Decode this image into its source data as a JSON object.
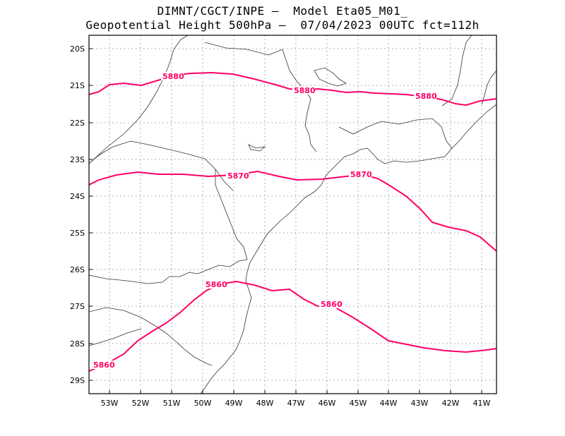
{
  "title": {
    "line1": "DIMNT/CGCT/INPE –  Model Eta05_M01_",
    "line2": "Geopotential Height 500hPa –  07/04/2023 00UTC fct=112h"
  },
  "map": {
    "lat_labels": [
      "20S",
      "21S",
      "22S",
      "23S",
      "24S",
      "25S",
      "26S",
      "27S",
      "28S",
      "29S"
    ],
    "lon_labels": [
      "53W",
      "52W",
      "51W",
      "50W",
      "49W",
      "48W",
      "47W",
      "46W",
      "45W",
      "44W",
      "43W",
      "42W",
      "41W"
    ],
    "contour_color": "#ff0066",
    "contours": [
      {
        "value": 5880,
        "labels": [
          "5880",
          "5880",
          "5880"
        ]
      },
      {
        "value": 5870,
        "labels": [
          "5870",
          "5870"
        ]
      },
      {
        "value": 5860,
        "labels": [
          "5860",
          "5860",
          "5860"
        ]
      }
    ]
  }
}
